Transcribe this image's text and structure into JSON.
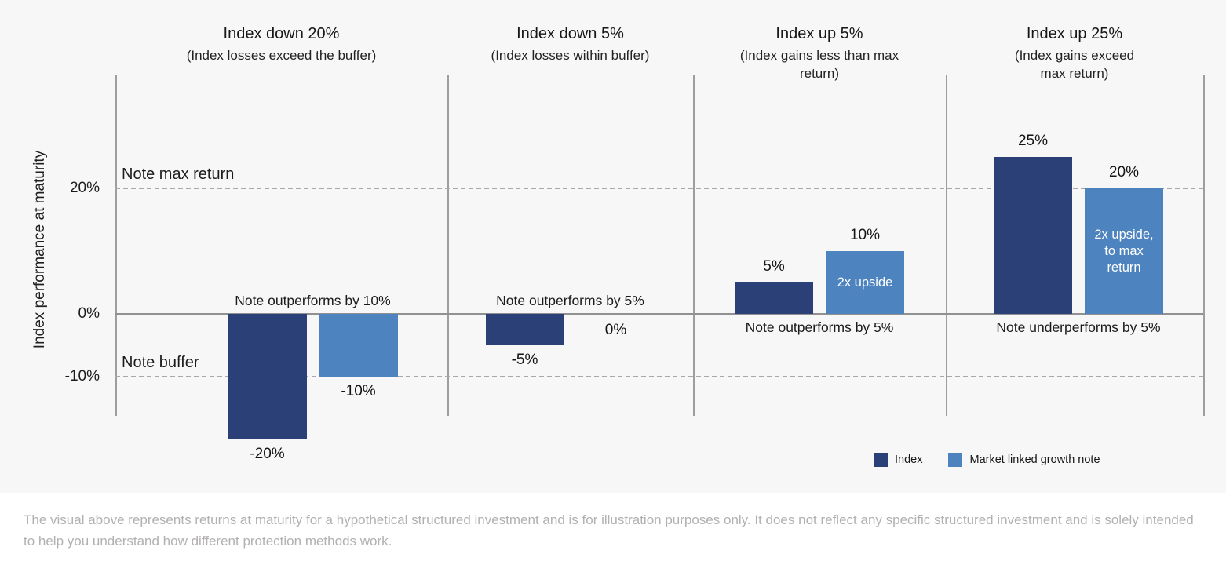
{
  "chart_data": {
    "type": "bar",
    "ylabel": "Index performance at maturity",
    "ylim": [
      -27,
      38
    ],
    "grid": false,
    "legend_position": "bottom-right",
    "yticks": [
      {
        "value": 20,
        "label": "20%"
      },
      {
        "value": 0,
        "label": "0%"
      },
      {
        "value": -10,
        "label": "-10%"
      }
    ],
    "reference_lines": [
      {
        "name": "note-max-return",
        "label": "Note max return",
        "value": 20,
        "style": "dashed"
      },
      {
        "name": "note-buffer",
        "label": "Note buffer",
        "value": -10,
        "style": "dashed"
      }
    ],
    "categories": [
      "Index down 20%",
      "Index down 5%",
      "Index up 5%",
      "Index up 25%"
    ],
    "series": [
      {
        "name": "Index",
        "values": [
          -20,
          -5,
          5,
          25
        ]
      },
      {
        "name": "Market linked growth note",
        "values": [
          -10,
          0,
          10,
          20
        ]
      }
    ],
    "panels": [
      {
        "title": "Index down 20%",
        "subtitle": "(Index losses exceed the buffer)",
        "index_value": -20,
        "index_label": "-20%",
        "note_value": -10,
        "note_label": "-10%",
        "note_bar_text": "",
        "annotation": "Note outperforms by 10%",
        "annotation_side": "above"
      },
      {
        "title": "Index down 5%",
        "subtitle": "(Index losses within buffer)",
        "index_value": -5,
        "index_label": "-5%",
        "note_value": 0,
        "note_label": "0%",
        "note_bar_text": "",
        "annotation": "Note outperforms by 5%",
        "annotation_side": "above"
      },
      {
        "title": "Index up 5%",
        "subtitle": "(Index gains less than max return)",
        "index_value": 5,
        "index_label": "5%",
        "note_value": 10,
        "note_label": "10%",
        "note_bar_text": "2x upside",
        "annotation": "Note outperforms by 5%",
        "annotation_side": "below"
      },
      {
        "title": "Index up 25%",
        "subtitle": "(Index gains exceed max return)",
        "index_value": 25,
        "index_label": "25%",
        "note_value": 20,
        "note_label": "20%",
        "note_bar_text": "2x upside, to max return",
        "annotation": "Note underperforms by 5%",
        "annotation_side": "below"
      }
    ],
    "legend": [
      {
        "label": "Index",
        "color": "#2b4077"
      },
      {
        "label": "Market linked growth note",
        "color": "#4d83bf"
      }
    ]
  },
  "colors": {
    "index_bar": "#2b4077",
    "note_bar": "#4d83bf",
    "chart_background": "#f7f7f8",
    "page_background": "#ffffff",
    "axis_line": "#9e9e9e",
    "dashed_line": "#a9a9a9",
    "footer_text": "#b2b0b0"
  },
  "footer": {
    "text": "The visual above represents returns at maturity for a hypothetical structured investment and is for illustration purposes only. It does not reflect any specific structured investment and is solely intended to help you understand how different protection methods work."
  }
}
